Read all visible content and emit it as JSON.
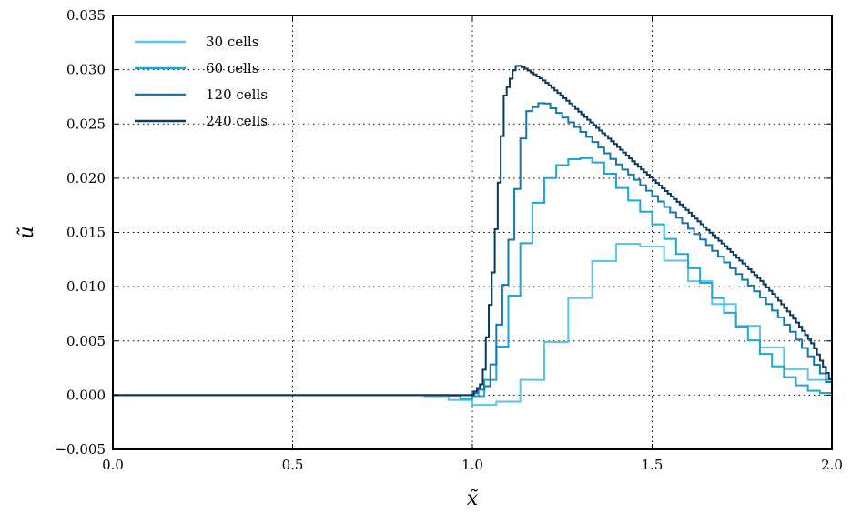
{
  "chart_data": {
    "type": "line",
    "title": "",
    "xlabel": "x̃",
    "ylabel": "ũ",
    "xlim": [
      0.0,
      2.0
    ],
    "ylim": [
      -0.005,
      0.035
    ],
    "xticks": [
      0.0,
      0.5,
      1.0,
      1.5,
      2.0
    ],
    "xtick_labels": [
      "0.0",
      "0.5",
      "1.0",
      "1.5",
      "2.0"
    ],
    "yticks": [
      -0.005,
      0.0,
      0.005,
      0.01,
      0.015,
      0.02,
      0.025,
      0.03,
      0.035
    ],
    "ytick_labels": [
      "−0.005",
      "0.000",
      "0.005",
      "0.010",
      "0.015",
      "0.020",
      "0.025",
      "0.030",
      "0.035"
    ],
    "grid": true,
    "legend_position": "top-left",
    "series": [
      {
        "name": "30 cells",
        "color": "#5bc4ec",
        "width": 2,
        "cell_width": 0.0667,
        "x": [
          0.0,
          0.067,
          0.133,
          0.2,
          0.267,
          0.333,
          0.4,
          0.467,
          0.533,
          0.6,
          0.667,
          0.733,
          0.8,
          0.867,
          0.933,
          1.0,
          1.067,
          1.133,
          1.2,
          1.267,
          1.333,
          1.4,
          1.467,
          1.533,
          1.6,
          1.667,
          1.733,
          1.8,
          1.867,
          1.933
        ],
        "y": [
          0,
          0,
          0,
          0,
          0,
          0,
          0,
          0,
          0,
          0,
          0,
          0,
          0,
          0,
          -0.0002,
          -0.0007,
          -0.0011,
          -0.0001,
          0.0029,
          0.0069,
          0.011,
          0.0137,
          0.0142,
          0.0132,
          0.0116,
          0.0094,
          0.0074,
          0.0054,
          0.0034,
          0.0014
        ]
      },
      {
        "name": "60 cells",
        "color": "#1ca7d6",
        "width": 2,
        "cell_width": 0.0333,
        "x": [
          0.0,
          0.9,
          0.933,
          0.967,
          1.0,
          1.033,
          1.067,
          1.1,
          1.133,
          1.167,
          1.2,
          1.233,
          1.267,
          1.3,
          1.333,
          1.367,
          1.4,
          1.433,
          1.467,
          1.5,
          1.533,
          1.567,
          1.6,
          1.633,
          1.667,
          1.7,
          1.733,
          1.767,
          1.8,
          1.833,
          1.867,
          1.9,
          1.933,
          1.967
        ],
        "y": [
          0,
          0,
          0,
          -0.0001,
          -0.0006,
          0.0004,
          0.0024,
          0.0066,
          0.0117,
          0.0163,
          0.0192,
          0.0208,
          0.0216,
          0.0219,
          0.0218,
          0.0211,
          0.0197,
          0.0185,
          0.0174,
          0.0164,
          0.0151,
          0.0137,
          0.0123,
          0.0111,
          0.0096,
          0.0083,
          0.0069,
          0.0057,
          0.0044,
          0.0032,
          0.0021,
          0.0012,
          0.0006,
          0.0002
        ]
      },
      {
        "name": "120 cells",
        "color": "#1479b0",
        "width": 2,
        "cell_width": 0.0167,
        "x": [
          0.0,
          1.0,
          1.05,
          1.1,
          1.15,
          1.2,
          1.25,
          1.3,
          1.35,
          1.4,
          1.45,
          1.5,
          1.55,
          1.6,
          1.65,
          1.7,
          1.75,
          1.8,
          1.85,
          1.9,
          1.95,
          2.0
        ],
        "y": [
          0.0,
          0.0,
          0.001,
          0.012,
          0.026,
          0.0271,
          0.0258,
          0.0245,
          0.0231,
          0.0215,
          0.0201,
          0.0186,
          0.0171,
          0.0156,
          0.0141,
          0.0125,
          0.0109,
          0.0093,
          0.0075,
          0.0055,
          0.0032,
          0.0008
        ]
      },
      {
        "name": "240 cells",
        "color": "#0b3a5e",
        "width": 2,
        "cell_width": 0.0083,
        "x": [
          0.0,
          1.0,
          1.03,
          1.06,
          1.09,
          1.12,
          1.13,
          1.15,
          1.2,
          1.25,
          1.3,
          1.35,
          1.4,
          1.45,
          1.5,
          1.55,
          1.6,
          1.65,
          1.7,
          1.75,
          1.8,
          1.85,
          1.9,
          1.95,
          2.0
        ],
        "y": [
          0.0,
          0.0,
          0.0012,
          0.012,
          0.0275,
          0.0303,
          0.0304,
          0.0301,
          0.029,
          0.0276,
          0.0261,
          0.0246,
          0.0231,
          0.0215,
          0.02,
          0.0185,
          0.017,
          0.0154,
          0.0139,
          0.0123,
          0.0107,
          0.0089,
          0.0069,
          0.0046,
          0.0012
        ]
      }
    ]
  }
}
